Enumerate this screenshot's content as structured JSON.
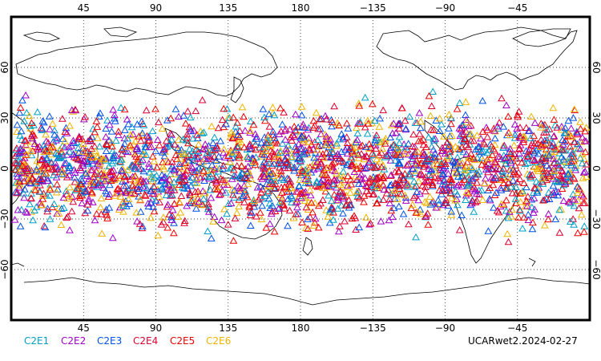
{
  "map": {
    "lon_ticks": [
      "45",
      "90",
      "135",
      "180",
      "−135",
      "−90",
      "−45"
    ],
    "lat_ticks": [
      "60",
      "30",
      "0",
      "−30",
      "−60"
    ],
    "observation_band_lat": [
      -48,
      48
    ],
    "marker": "triangle-outline"
  },
  "legend": {
    "items": [
      {
        "label": "C2E1",
        "color": "#00a0c8"
      },
      {
        "label": "C2E2",
        "color": "#a000c8"
      },
      {
        "label": "C2E3",
        "color": "#0050e6"
      },
      {
        "label": "C2E4",
        "color": "#dc0030"
      },
      {
        "label": "C2E5",
        "color": "#f00000"
      },
      {
        "label": "C2E6",
        "color": "#f0b400"
      }
    ]
  },
  "footer": {
    "label": "UCARwet2.2024-02-27"
  },
  "colors": {
    "coastline": "#000000",
    "grid": "#000000",
    "frame": "#000000"
  }
}
